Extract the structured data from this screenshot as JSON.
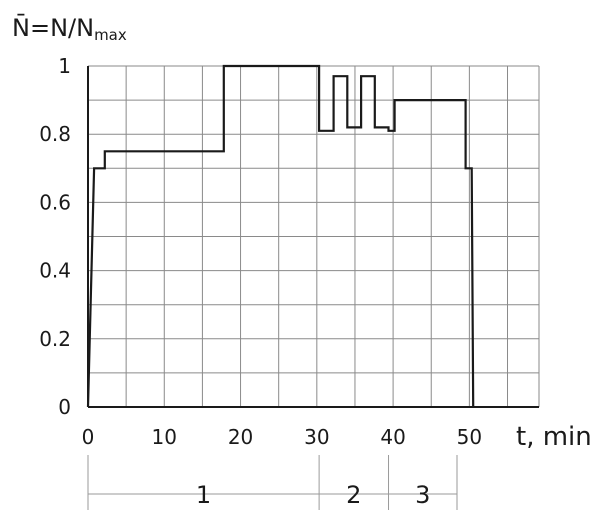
{
  "chart_data": {
    "type": "line",
    "ylabel": {
      "main": "N̄=N/N",
      "sub": "max"
    },
    "xlabel": "t, min",
    "xlim": [
      0,
      51
    ],
    "ylim": [
      0,
      1
    ],
    "x_ticks": [
      {
        "value": 0,
        "label": "0"
      },
      {
        "value": 10,
        "label": "10"
      },
      {
        "value": 20,
        "label": "20"
      },
      {
        "value": 30,
        "label": "30"
      },
      {
        "value": 40,
        "label": "40"
      },
      {
        "value": 50,
        "label": "50"
      }
    ],
    "y_ticks": [
      {
        "value": 0,
        "label": "0"
      },
      {
        "value": 0.2,
        "label": "0.2"
      },
      {
        "value": 0.4,
        "label": "0.4"
      },
      {
        "value": 0.6,
        "label": "0.6"
      },
      {
        "value": 0.8,
        "label": "0.8"
      },
      {
        "value": 1,
        "label": "1"
      }
    ],
    "grid_x_step": 5,
    "grid_y_step": 0.1,
    "grid": true,
    "series": [
      {
        "x": [
          0,
          0.8,
          2.2,
          2.2,
          17.8,
          17.8,
          30.3,
          30.3,
          32.2,
          32.2,
          34.0,
          34.0,
          35.8,
          35.8,
          37.6,
          37.6,
          39.4,
          39.4,
          40.2,
          40.2,
          49.5,
          49.5,
          50.3,
          50.5
        ],
        "y": [
          0,
          0.7,
          0.7,
          0.75,
          0.75,
          1.0,
          1.0,
          0.81,
          0.81,
          0.97,
          0.97,
          0.82,
          0.82,
          0.97,
          0.97,
          0.82,
          0.82,
          0.81,
          0.81,
          0.9,
          0.9,
          0.7,
          0.7,
          0
        ]
      }
    ],
    "stages": [
      {
        "label": "1",
        "x_start": 0,
        "x_end": 30.3
      },
      {
        "label": "2",
        "x_start": 30.3,
        "x_end": 39.4
      },
      {
        "label": "3",
        "x_start": 39.4,
        "x_end": 51
      }
    ]
  }
}
